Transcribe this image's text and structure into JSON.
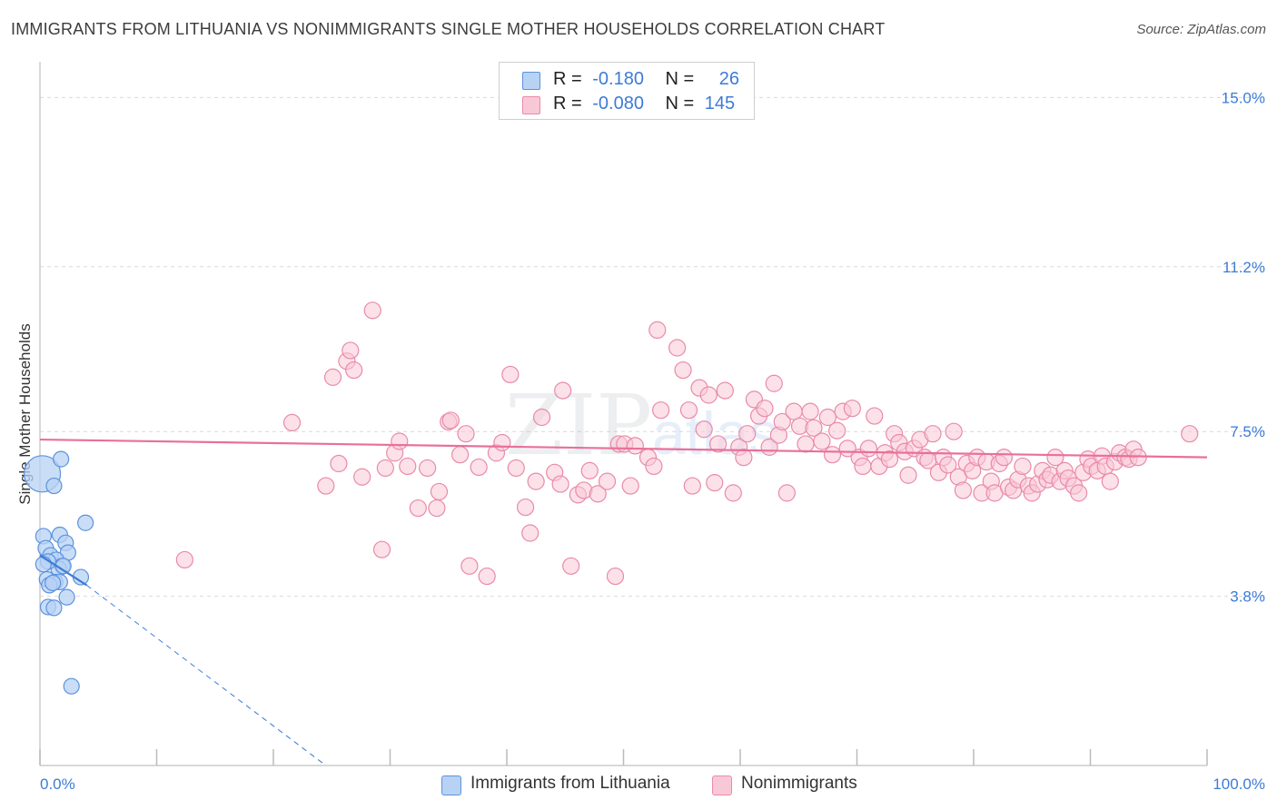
{
  "header": {
    "title": "IMMIGRANTS FROM LITHUANIA VS NONIMMIGRANTS SINGLE MOTHER HOUSEHOLDS CORRELATION CHART",
    "source": "Source: ZipAtlas.com"
  },
  "legend": {
    "rows": [
      {
        "r_label": "R =",
        "r_value": "-0.180",
        "n_label": "N =",
        "n_value": "26"
      },
      {
        "r_label": "R =",
        "r_value": "-0.080",
        "n_label": "N =",
        "n_value": "145"
      }
    ]
  },
  "watermark": {
    "zip": "ZIP",
    "atlas": "atlas"
  },
  "colors": {
    "blue": "#3d7bd6",
    "blue_fill": "#b8d2f4",
    "blue_stroke": "#5b93de",
    "pink": "#e8709a",
    "pink_fill": "#f9c8d7",
    "pink_stroke": "#e98aaa"
  },
  "chart_data": {
    "type": "scatter",
    "title": "IMMIGRANTS FROM LITHUANIA VS NONIMMIGRANTS SINGLE MOTHER HOUSEHOLDS CORRELATION CHART",
    "xlabel": "",
    "ylabel": "Single Mother Households",
    "xlim": [
      0,
      100
    ],
    "ylim": [
      0,
      15.6
    ],
    "x_tick_labels": [
      "0.0%",
      "100.0%"
    ],
    "y_ticks": [
      3.8,
      7.5,
      11.2,
      15.0
    ],
    "y_tick_labels": [
      "3.8%",
      "7.5%",
      "11.2%",
      "15.0%"
    ],
    "grid": "horizontal dashed",
    "legend_position": "top-center",
    "series": [
      {
        "name": "Immigrants from Lithuania",
        "color": "blue",
        "trend": {
          "x": [
            0,
            4.0
          ],
          "y": [
            4.72,
            4.05
          ],
          "dashed_extension_to": [
            24.5,
            0.0
          ]
        },
        "points": [
          [
            0.2,
            6.55
          ],
          [
            1.2,
            6.28
          ],
          [
            1.8,
            6.88
          ],
          [
            3.9,
            5.45
          ],
          [
            1.7,
            5.18
          ],
          [
            0.3,
            5.15
          ],
          [
            0.5,
            4.88
          ],
          [
            2.2,
            5.0
          ],
          [
            2.4,
            4.78
          ],
          [
            0.9,
            4.72
          ],
          [
            1.4,
            4.62
          ],
          [
            1.9,
            4.48
          ],
          [
            1.6,
            4.42
          ],
          [
            2.0,
            4.48
          ],
          [
            0.7,
            4.58
          ],
          [
            3.5,
            4.23
          ],
          [
            0.6,
            4.18
          ],
          [
            1.3,
            4.12
          ],
          [
            1.7,
            4.12
          ],
          [
            0.8,
            4.05
          ],
          [
            1.1,
            4.1
          ],
          [
            2.3,
            3.78
          ],
          [
            0.7,
            3.56
          ],
          [
            1.2,
            3.54
          ],
          [
            2.7,
            1.78
          ],
          [
            0.3,
            4.52
          ]
        ]
      },
      {
        "name": "Nonimmigrants",
        "color": "pink",
        "trend": {
          "x": [
            0,
            100
          ],
          "y": [
            7.32,
            6.92
          ]
        },
        "points": [
          [
            12.4,
            4.62
          ],
          [
            21.6,
            7.7
          ],
          [
            24.5,
            6.28
          ],
          [
            25.1,
            8.72
          ],
          [
            25.6,
            6.78
          ],
          [
            26.3,
            9.08
          ],
          [
            26.6,
            9.32
          ],
          [
            26.9,
            8.88
          ],
          [
            27.6,
            6.48
          ],
          [
            28.5,
            10.22
          ],
          [
            29.3,
            4.85
          ],
          [
            29.6,
            6.68
          ],
          [
            30.4,
            7.02
          ],
          [
            30.8,
            7.28
          ],
          [
            31.5,
            6.72
          ],
          [
            32.4,
            5.78
          ],
          [
            33.2,
            6.68
          ],
          [
            34.0,
            5.78
          ],
          [
            34.2,
            6.15
          ],
          [
            35.0,
            7.72
          ],
          [
            35.2,
            7.75
          ],
          [
            36.0,
            6.98
          ],
          [
            36.5,
            7.45
          ],
          [
            36.8,
            4.48
          ],
          [
            37.6,
            6.7
          ],
          [
            38.3,
            4.25
          ],
          [
            39.1,
            7.02
          ],
          [
            39.6,
            7.25
          ],
          [
            40.3,
            8.78
          ],
          [
            40.8,
            6.68
          ],
          [
            41.6,
            5.8
          ],
          [
            42.0,
            5.22
          ],
          [
            42.5,
            6.38
          ],
          [
            43.0,
            7.82
          ],
          [
            44.1,
            6.58
          ],
          [
            44.6,
            6.32
          ],
          [
            44.8,
            8.42
          ],
          [
            45.5,
            4.48
          ],
          [
            46.1,
            6.08
          ],
          [
            46.6,
            6.18
          ],
          [
            47.1,
            6.62
          ],
          [
            47.8,
            6.1
          ],
          [
            48.6,
            6.38
          ],
          [
            49.3,
            4.25
          ],
          [
            49.6,
            7.22
          ],
          [
            50.1,
            7.22
          ],
          [
            50.6,
            6.28
          ],
          [
            51.0,
            7.18
          ],
          [
            52.1,
            6.92
          ],
          [
            52.6,
            6.72
          ],
          [
            52.9,
            9.78
          ],
          [
            53.2,
            7.98
          ],
          [
            54.6,
            9.38
          ],
          [
            55.1,
            8.88
          ],
          [
            55.6,
            7.98
          ],
          [
            55.9,
            6.28
          ],
          [
            56.5,
            8.48
          ],
          [
            56.9,
            7.55
          ],
          [
            57.3,
            8.32
          ],
          [
            57.8,
            6.35
          ],
          [
            58.1,
            7.22
          ],
          [
            58.7,
            8.42
          ],
          [
            59.4,
            6.12
          ],
          [
            59.9,
            7.15
          ],
          [
            60.3,
            6.92
          ],
          [
            60.6,
            7.45
          ],
          [
            61.2,
            8.22
          ],
          [
            61.6,
            7.85
          ],
          [
            62.1,
            8.02
          ],
          [
            62.5,
            7.15
          ],
          [
            62.9,
            8.58
          ],
          [
            63.3,
            7.42
          ],
          [
            63.6,
            7.72
          ],
          [
            64.0,
            6.12
          ],
          [
            64.6,
            7.95
          ],
          [
            65.1,
            7.62
          ],
          [
            65.6,
            7.22
          ],
          [
            66.0,
            7.95
          ],
          [
            66.3,
            7.58
          ],
          [
            67.0,
            7.28
          ],
          [
            67.5,
            7.82
          ],
          [
            67.9,
            6.98
          ],
          [
            68.3,
            7.52
          ],
          [
            68.8,
            7.95
          ],
          [
            69.2,
            7.12
          ],
          [
            69.6,
            8.02
          ],
          [
            70.2,
            6.92
          ],
          [
            70.5,
            6.72
          ],
          [
            71.0,
            7.12
          ],
          [
            71.5,
            7.85
          ],
          [
            71.9,
            6.72
          ],
          [
            72.4,
            7.02
          ],
          [
            72.8,
            6.88
          ],
          [
            73.2,
            7.45
          ],
          [
            73.6,
            7.25
          ],
          [
            74.1,
            7.05
          ],
          [
            74.4,
            6.52
          ],
          [
            74.9,
            7.12
          ],
          [
            75.4,
            7.32
          ],
          [
            75.8,
            6.92
          ],
          [
            76.1,
            6.85
          ],
          [
            76.5,
            7.45
          ],
          [
            77.0,
            6.58
          ],
          [
            77.4,
            6.92
          ],
          [
            77.8,
            6.75
          ],
          [
            78.3,
            7.5
          ],
          [
            78.7,
            6.48
          ],
          [
            79.1,
            6.18
          ],
          [
            79.4,
            6.78
          ],
          [
            79.9,
            6.62
          ],
          [
            80.3,
            6.92
          ],
          [
            80.7,
            6.12
          ],
          [
            81.1,
            6.82
          ],
          [
            81.5,
            6.38
          ],
          [
            81.8,
            6.12
          ],
          [
            82.2,
            6.78
          ],
          [
            82.6,
            6.92
          ],
          [
            83.0,
            6.25
          ],
          [
            83.4,
            6.18
          ],
          [
            83.8,
            6.42
          ],
          [
            84.2,
            6.72
          ],
          [
            84.7,
            6.28
          ],
          [
            85.0,
            6.12
          ],
          [
            85.5,
            6.32
          ],
          [
            85.9,
            6.62
          ],
          [
            86.3,
            6.42
          ],
          [
            86.6,
            6.52
          ],
          [
            87.0,
            6.92
          ],
          [
            87.4,
            6.38
          ],
          [
            87.8,
            6.62
          ],
          [
            88.1,
            6.45
          ],
          [
            88.6,
            6.28
          ],
          [
            89.0,
            6.12
          ],
          [
            89.4,
            6.58
          ],
          [
            89.8,
            6.88
          ],
          [
            90.1,
            6.72
          ],
          [
            90.6,
            6.62
          ],
          [
            91.0,
            6.95
          ],
          [
            91.3,
            6.72
          ],
          [
            91.7,
            6.38
          ],
          [
            92.1,
            6.82
          ],
          [
            92.5,
            7.02
          ],
          [
            93.0,
            6.92
          ],
          [
            93.3,
            6.88
          ],
          [
            93.7,
            7.1
          ],
          [
            94.1,
            6.92
          ],
          [
            98.5,
            7.45
          ]
        ]
      }
    ]
  },
  "bottom_legend": {
    "items": [
      "Immigrants from Lithuania",
      "Nonimmigrants"
    ]
  }
}
